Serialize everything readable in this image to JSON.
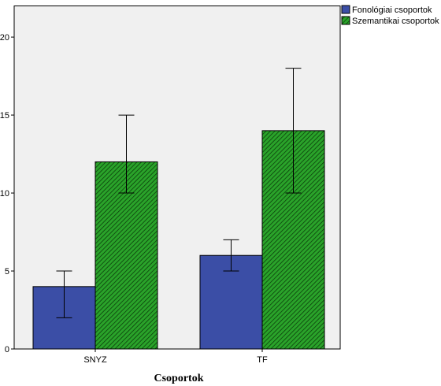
{
  "chart_data": {
    "type": "bar",
    "categories": [
      "SNYZ",
      "TF"
    ],
    "series": [
      {
        "name": "Fonológiai csoportok",
        "values": [
          4,
          6
        ],
        "error_low": [
          2,
          5
        ],
        "error_high": [
          5,
          7
        ],
        "color": "#3b4ea6",
        "pattern": "solid"
      },
      {
        "name": "Szemantikai csoportok",
        "values": [
          12,
          14
        ],
        "error_low": [
          10,
          10
        ],
        "error_high": [
          15,
          18
        ],
        "color": "#1e9a1e",
        "pattern": "diagonal-hatch"
      }
    ],
    "title": "",
    "xlabel": "Csoportok",
    "ylabel": "",
    "ylim": [
      0,
      22
    ],
    "yticks": [
      0,
      5,
      10,
      15,
      20
    ],
    "grid": false,
    "legend_position": "top-right",
    "plot_background": "#f0f0f0"
  }
}
